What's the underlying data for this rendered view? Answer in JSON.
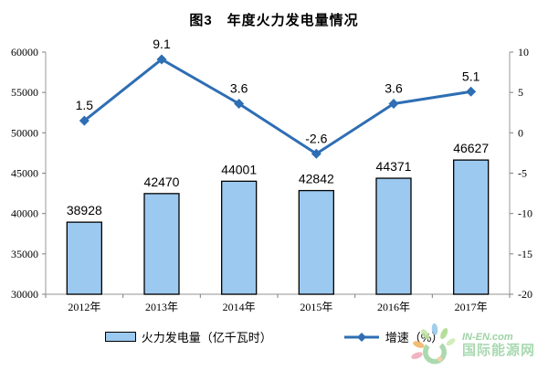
{
  "chart_data": {
    "type": "bar+line",
    "title": "图3　年度火力发电量情况",
    "categories": [
      "2012年",
      "2013年",
      "2014年",
      "2015年",
      "2016年",
      "2017年"
    ],
    "series": [
      {
        "name": "火力发电量（亿千瓦时）",
        "chart": "bar",
        "axis": "left",
        "values": [
          38928,
          42470,
          44001,
          42842,
          44371,
          46627
        ],
        "color": "#9CC9F0",
        "border": "#000000"
      },
      {
        "name": "增速（%）",
        "chart": "line",
        "axis": "right",
        "values": [
          1.5,
          9.1,
          3.6,
          -2.6,
          3.6,
          5.1
        ],
        "color": "#2E6EB4"
      }
    ],
    "left_axis": {
      "min": 30000,
      "max": 60000,
      "step": 5000,
      "ticks": [
        "30000",
        "35000",
        "40000",
        "45000",
        "50000",
        "55000",
        "60000"
      ]
    },
    "right_axis": {
      "min": -20,
      "max": 10,
      "step": 5,
      "ticks": [
        "-20",
        "-15",
        "-10",
        "-5",
        "0",
        "5",
        "10"
      ]
    },
    "grid": false,
    "legend_position": "bottom",
    "data_labels": true
  },
  "colors": {
    "axis_line": "#A9A9A9",
    "tick_mark": "#7F7F7F",
    "label_text": "#000000",
    "watermark_green": "#9BD3A4",
    "watermark_brand_green": "#8CCB95"
  },
  "watermark": {
    "brand": "IN-EN.com",
    "name": "国际能源网"
  }
}
